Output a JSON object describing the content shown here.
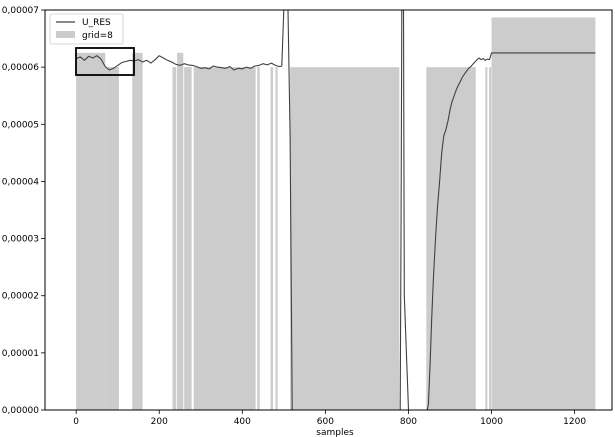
{
  "chart_data": {
    "type": "line",
    "xlabel": "samples",
    "ylabel": "",
    "xlim": [
      -75,
      1290
    ],
    "ylim": [
      0,
      7e-05
    ],
    "x_ticks": [
      0,
      200,
      400,
      600,
      800,
      1000,
      1200
    ],
    "y_ticks": [
      0,
      1e-05,
      2e-05,
      3e-05,
      4e-05,
      5e-05,
      6e-05,
      7e-05
    ],
    "y_tick_labels": [
      "0,00000",
      "0,00001",
      "0,00002",
      "0,00003",
      "0,00004",
      "0,00005",
      "0,00006",
      "0,00007"
    ],
    "legend_position": "top-left",
    "series": [
      {
        "name": "U_RES",
        "kind": "line",
        "color": "#404040",
        "x": [
          0,
          10,
          20,
          30,
          40,
          50,
          60,
          70,
          80,
          90,
          100,
          110,
          120,
          130,
          140,
          150,
          160,
          170,
          180,
          190,
          200,
          210,
          220,
          230,
          240,
          250,
          260,
          270,
          280,
          290,
          300,
          310,
          320,
          330,
          340,
          350,
          360,
          370,
          380,
          390,
          400,
          410,
          420,
          430,
          440,
          450,
          460,
          470,
          480,
          490,
          495,
          500,
          505,
          510,
          515,
          520,
          530,
          600,
          700,
          780,
          782,
          784,
          786,
          788,
          790,
          800,
          830,
          845,
          848,
          852,
          856,
          860,
          865,
          870,
          875,
          880,
          885,
          890,
          895,
          900,
          905,
          910,
          915,
          920,
          925,
          930,
          935,
          940,
          945,
          950,
          955,
          960,
          965,
          970,
          975,
          980,
          985,
          990,
          995,
          1000,
          1250
        ],
        "y": [
          6.15e-05,
          6.18e-05,
          6.12e-05,
          6.19e-05,
          6.16e-05,
          6.2e-05,
          6.14e-05,
          6.01e-05,
          5.95e-05,
          5.98e-05,
          6.03e-05,
          6.08e-05,
          6.1e-05,
          6.12e-05,
          6.11e-05,
          6.13e-05,
          6.09e-05,
          6.12e-05,
          6.07e-05,
          6.13e-05,
          6.2e-05,
          6.16e-05,
          6.12e-05,
          6.09e-05,
          6.05e-05,
          6.03e-05,
          6.06e-05,
          6.04e-05,
          6.03e-05,
          6.01e-05,
          5.98e-05,
          5.99e-05,
          5.97e-05,
          6.02e-05,
          6e-05,
          5.99e-05,
          5.98e-05,
          6.01e-05,
          5.95e-05,
          5.98e-05,
          5.97e-05,
          6e-05,
          5.98e-05,
          6.02e-05,
          6.03e-05,
          6.06e-05,
          6.04e-05,
          6.07e-05,
          6.03e-05,
          6.01e-05,
          6.02e-05,
          7e-05,
          7e-05,
          7e-05,
          4.8e-05,
          0,
          0,
          0,
          0,
          0,
          3e-05,
          7e-05,
          7e-05,
          7e-05,
          2e-05,
          0,
          0,
          0,
          1e-06,
          8e-06,
          1.6e-05,
          2.3e-05,
          3e-05,
          3.55e-05,
          4e-05,
          4.5e-05,
          4.8e-05,
          4.9e-05,
          5.05e-05,
          5.25e-05,
          5.4e-05,
          5.5e-05,
          5.6e-05,
          5.68e-05,
          5.75e-05,
          5.83e-05,
          5.88e-05,
          5.93e-05,
          5.98e-05,
          6.01e-05,
          6.05e-05,
          6.09e-05,
          6.13e-05,
          6.16e-05,
          6.13e-05,
          6.15e-05,
          6.12e-05,
          6.14e-05,
          6.13e-05,
          6.25e-05,
          6.25e-05
        ]
      },
      {
        "name": "grid=8",
        "kind": "bars",
        "color": "#cccccc",
        "bars": [
          {
            "x0": 0,
            "x1": 70,
            "y": 6.25e-05
          },
          {
            "x0": 70,
            "x1": 103,
            "y": 6e-05
          },
          {
            "x0": 135,
            "x1": 160,
            "y": 6.25e-05
          },
          {
            "x0": 232,
            "x1": 241,
            "y": 6e-05
          },
          {
            "x0": 243,
            "x1": 258,
            "y": 6.25e-05
          },
          {
            "x0": 260,
            "x1": 278,
            "y": 6e-05
          },
          {
            "x0": 283,
            "x1": 432,
            "y": 6e-05
          },
          {
            "x0": 436,
            "x1": 442,
            "y": 6e-05
          },
          {
            "x0": 468,
            "x1": 474,
            "y": 6e-05
          },
          {
            "x0": 480,
            "x1": 485,
            "y": 6e-05
          },
          {
            "x0": 515,
            "x1": 778,
            "y": 6e-05
          },
          {
            "x0": 843,
            "x1": 962,
            "y": 6e-05
          },
          {
            "x0": 985,
            "x1": 990,
            "y": 6e-05
          },
          {
            "x0": 994,
            "x1": 999,
            "y": 6e-05
          },
          {
            "x0": 1000,
            "x1": 1250,
            "y": 6.87e-05
          }
        ]
      }
    ]
  }
}
